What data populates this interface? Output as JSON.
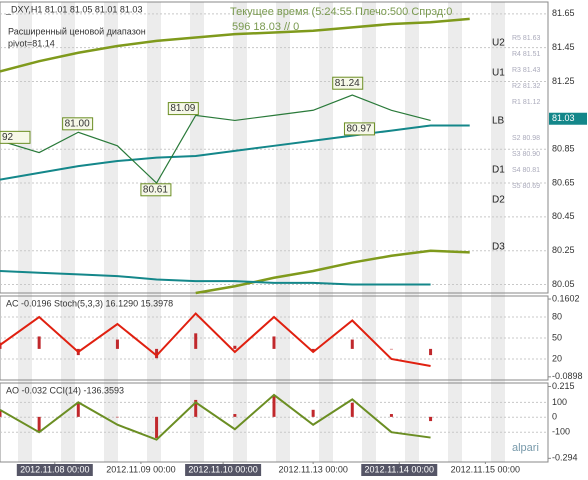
{
  "chart_data": [
    {
      "type": "line",
      "title": "_DXY,H1 81.01 81.05 81.01 81.03",
      "subtitle": [
        "Расширенный ценовой диапазон",
        "pivot=81.14"
      ],
      "info": [
        "Текущее время (5:24:55 Плечо:500 Спрэд:0",
        "596 18.03  // 0"
      ],
      "x": [
        0,
        10,
        20,
        30,
        40,
        50,
        60,
        70,
        80,
        90,
        100,
        110,
        120,
        130
      ],
      "xlim": [
        0,
        140
      ],
      "ylim": [
        80.0,
        81.72
      ],
      "yticks": [
        {
          "value": 80.05,
          "label": "80.05"
        },
        80.25,
        80.45,
        80.65,
        80.85,
        81.25,
        81.45,
        81.65
      ],
      "last_price": 81.03,
      "series": [
        {
          "name": "U2",
          "color": "#7f9a1c",
          "width": 2.5,
          "values": [
            81.31,
            81.37,
            81.42,
            81.46,
            81.49,
            81.51,
            81.53,
            81.54,
            81.55,
            81.57,
            81.59,
            81.6,
            81.62,
            null
          ]
        },
        {
          "name": "LB",
          "color": "#14878a",
          "width": 2,
          "values": [
            80.67,
            80.71,
            80.75,
            80.78,
            80.8,
            80.81,
            80.84,
            80.87,
            80.9,
            80.93,
            80.96,
            80.99,
            80.99,
            null
          ]
        },
        {
          "name": "D3",
          "color": "#7f9a1c",
          "width": 2.5,
          "values": [
            null,
            null,
            null,
            null,
            null,
            80.0,
            80.04,
            80.09,
            80.13,
            80.18,
            80.22,
            80.25,
            80.24,
            null
          ]
        },
        {
          "name": "Base",
          "color": "#14878a",
          "width": 2,
          "values": [
            80.13,
            80.12,
            80.11,
            80.1,
            80.08,
            80.07,
            80.07,
            80.06,
            80.06,
            80.05,
            80.05,
            80.05,
            null,
            null
          ]
        },
        {
          "name": "DXY",
          "color": "#2a7a3a",
          "width": 1.2,
          "values": [
            80.9,
            80.83,
            80.95,
            80.87,
            80.65,
            81.05,
            81.02,
            81.05,
            81.08,
            81.17,
            81.08,
            81.02,
            null,
            null
          ]
        }
      ],
      "levels": [
        "U2",
        "U1",
        "LB",
        "D1",
        "D2",
        "D3"
      ],
      "pivots": [
        "R5 81.63",
        "R4 81.51",
        "R3 81.43",
        "R2 81.32",
        "R1 81.12",
        "S2 80.98",
        "S3 80.90",
        "S4 80.81",
        "S5 80.69"
      ],
      "price_labels": [
        {
          "x": 0,
          "value": 80.92,
          "label": "92"
        },
        {
          "x": 16,
          "value": 81.0,
          "label": "81.00"
        },
        {
          "x": 36,
          "value": 80.61,
          "label": "80.61"
        },
        {
          "x": 43,
          "value": 81.09,
          "label": "81.09"
        },
        {
          "x": 85,
          "value": 81.24,
          "label": "81.24"
        },
        {
          "x": 88,
          "value": 80.97,
          "label": "80.97"
        }
      ]
    },
    {
      "type": "line",
      "title": "AC -0.0196 Stoch(5,3,3) 16.1290 15.3978",
      "x": [
        0,
        10,
        20,
        30,
        40,
        50,
        60,
        70,
        80,
        90,
        100,
        110,
        120,
        130
      ],
      "xlim": [
        0,
        140
      ],
      "ylim": [
        -10,
        110
      ],
      "yticks": [
        20,
        50,
        80
      ],
      "y2lim": [
        -0.1,
        0.17
      ],
      "y2ticks": [
        0.1602,
        -0.0898
      ],
      "series": [
        {
          "name": "AC",
          "color": "#c0282c",
          "axis": "y2",
          "style": "bar",
          "values": [
            0.02,
            0.04,
            -0.02,
            0.03,
            -0.03,
            0.05,
            0.01,
            0.04,
            -0.01,
            0.03,
            0.0,
            -0.02,
            null,
            null
          ]
        },
        {
          "name": "Stoch",
          "color": "#e02010",
          "width": 2,
          "values": [
            40,
            80,
            30,
            70,
            25,
            85,
            30,
            80,
            30,
            75,
            20,
            10,
            null,
            null
          ]
        }
      ]
    },
    {
      "type": "line",
      "title": "AO -0.032 CCI(14) -136.3593",
      "x": [
        0,
        10,
        20,
        30,
        40,
        50,
        60,
        70,
        80,
        90,
        100,
        110,
        120,
        130
      ],
      "xlim": [
        0,
        140
      ],
      "ylim": [
        -300,
        230
      ],
      "yticks": [
        -100,
        0,
        100
      ],
      "y2lim": [
        -0.32,
        0.24
      ],
      "y2ticks": [
        0.215,
        -0.294
      ],
      "xticks": [
        {
          "value": 14,
          "label": "2012.11.08 00:00"
        },
        {
          "value": 36,
          "label": "2012.11.09 00:00"
        },
        {
          "value": 57,
          "label": "2012.11.10 00:00"
        },
        {
          "value": 80,
          "label": "2012.11.13 00:00"
        },
        {
          "value": 102,
          "label": "2012.11.14 00:00"
        },
        {
          "value": 124,
          "label": "2012.11.15 00:00"
        }
      ],
      "logo": "alpari",
      "series": [
        {
          "name": "AO",
          "color": "#c0282c",
          "axis": "y2",
          "style": "bar",
          "values": [
            0.05,
            -0.1,
            0.1,
            0.0,
            -0.15,
            0.12,
            0.02,
            0.15,
            0.05,
            0.1,
            0.02,
            -0.03,
            null,
            null
          ]
        },
        {
          "name": "CCI",
          "color": "#6b8e23",
          "width": 2,
          "values": [
            50,
            -100,
            100,
            -50,
            -150,
            100,
            -80,
            150,
            -50,
            120,
            -100,
            -136,
            null,
            null
          ]
        }
      ]
    }
  ]
}
